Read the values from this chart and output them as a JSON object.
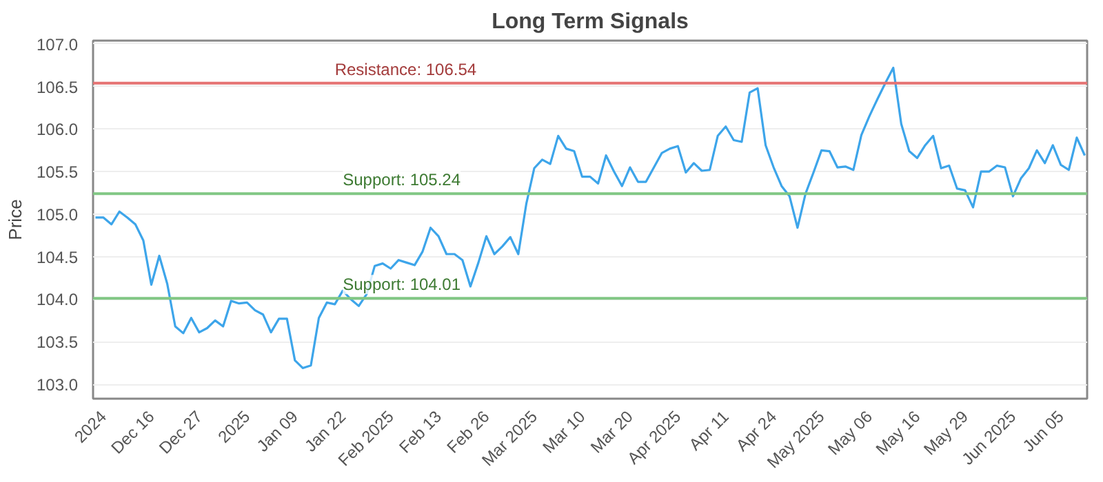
{
  "chart_data": {
    "type": "line",
    "title": "Long Term Signals",
    "ylabel": "Price",
    "categories": [
      null,
      "2024",
      null,
      null,
      null,
      null,
      null,
      "Dec 16",
      null,
      null,
      null,
      null,
      null,
      "Dec 27",
      null,
      null,
      null,
      null,
      null,
      "2025",
      null,
      null,
      null,
      null,
      null,
      "Jan 09",
      null,
      null,
      null,
      null,
      null,
      "Jan 22",
      null,
      null,
      null,
      null,
      null,
      "Feb 2025",
      null,
      null,
      null,
      null,
      null,
      "Feb 13",
      null,
      null,
      null,
      null,
      null,
      "Feb 26",
      null,
      null,
      null,
      null,
      null,
      "Mar 2025",
      null,
      null,
      null,
      null,
      null,
      "Mar 10",
      null,
      null,
      null,
      null,
      null,
      "Mar 20",
      null,
      null,
      null,
      null,
      null,
      "Apr 2025",
      null,
      null,
      null,
      null,
      null,
      "Apr 11",
      null,
      null,
      null,
      null,
      null,
      "Apr 24",
      null,
      null,
      null,
      null,
      null,
      "May 2025",
      null,
      null,
      null,
      null,
      null,
      "May 06",
      null,
      null,
      null,
      null,
      null,
      "May 16",
      null,
      null,
      null,
      null,
      null,
      "May 29",
      null,
      null,
      null,
      null,
      null,
      "Jun 2025",
      null,
      null,
      null,
      null,
      null,
      "Jun 05",
      null,
      null,
      null
    ],
    "series": [
      {
        "color": "#3da5ea",
        "values": [
          104.96,
          104.96,
          104.88,
          105.03,
          104.96,
          104.88,
          104.69,
          104.17,
          104.51,
          104.18,
          103.68,
          103.6,
          103.78,
          103.61,
          103.66,
          103.75,
          103.68,
          103.98,
          103.95,
          103.96,
          103.87,
          103.82,
          103.61,
          103.77,
          103.77,
          103.28,
          103.19,
          103.22,
          103.78,
          103.96,
          103.94,
          104.1,
          104.0,
          103.92,
          104.06,
          104.39,
          104.42,
          104.36,
          104.46,
          104.43,
          104.4,
          104.56,
          104.84,
          104.74,
          104.53,
          104.53,
          104.46,
          104.15,
          104.43,
          104.74,
          104.53,
          104.62,
          104.73,
          104.53,
          105.12,
          105.54,
          105.64,
          105.59,
          105.92,
          105.77,
          105.74,
          105.44,
          105.44,
          105.36,
          105.69,
          105.5,
          105.33,
          105.55,
          105.38,
          105.38,
          105.55,
          105.72,
          105.77,
          105.8,
          105.49,
          105.6,
          105.51,
          105.52,
          105.92,
          106.03,
          105.87,
          105.85,
          106.43,
          106.48,
          105.81,
          105.55,
          105.33,
          105.21,
          104.84,
          105.24,
          105.49,
          105.75,
          105.74,
          105.55,
          105.56,
          105.52,
          105.93,
          106.15,
          106.35,
          106.54,
          106.72,
          106.06,
          105.74,
          105.66,
          105.81,
          105.92,
          105.54,
          105.57,
          105.3,
          105.28,
          105.08,
          105.5,
          105.5,
          105.57,
          105.55,
          105.21,
          105.42,
          105.54,
          105.75,
          105.6,
          105.81,
          105.58,
          105.52,
          105.9,
          105.69
        ]
      }
    ],
    "ylim": [
      102.83,
      107.04
    ],
    "yticks": [
      {
        "value": 103,
        "label": "103.0"
      },
      {
        "value": 103.5,
        "label": "103.5"
      },
      {
        "value": 104,
        "label": "104.0"
      },
      {
        "value": 104.5,
        "label": "104.5"
      },
      {
        "value": 105,
        "label": "105.0"
      },
      {
        "value": 105.5,
        "label": "105.5"
      },
      {
        "value": 106,
        "label": "106.0"
      },
      {
        "value": 106.5,
        "label": "106.5"
      },
      {
        "value": 107,
        "label": "107.0"
      }
    ],
    "grid": "y",
    "marker": "none",
    "line_style": "solid",
    "ref_lines": [
      {
        "axis": "y",
        "value": 106.54,
        "label": "Resistance: 106.54",
        "color": "#e57373"
      },
      {
        "axis": "y",
        "value": 105.24,
        "label": "Support: 105.24",
        "color": "#81c784"
      },
      {
        "axis": "y",
        "value": 104.01,
        "label": "Support: 104.01",
        "color": "#81c784"
      }
    ]
  }
}
